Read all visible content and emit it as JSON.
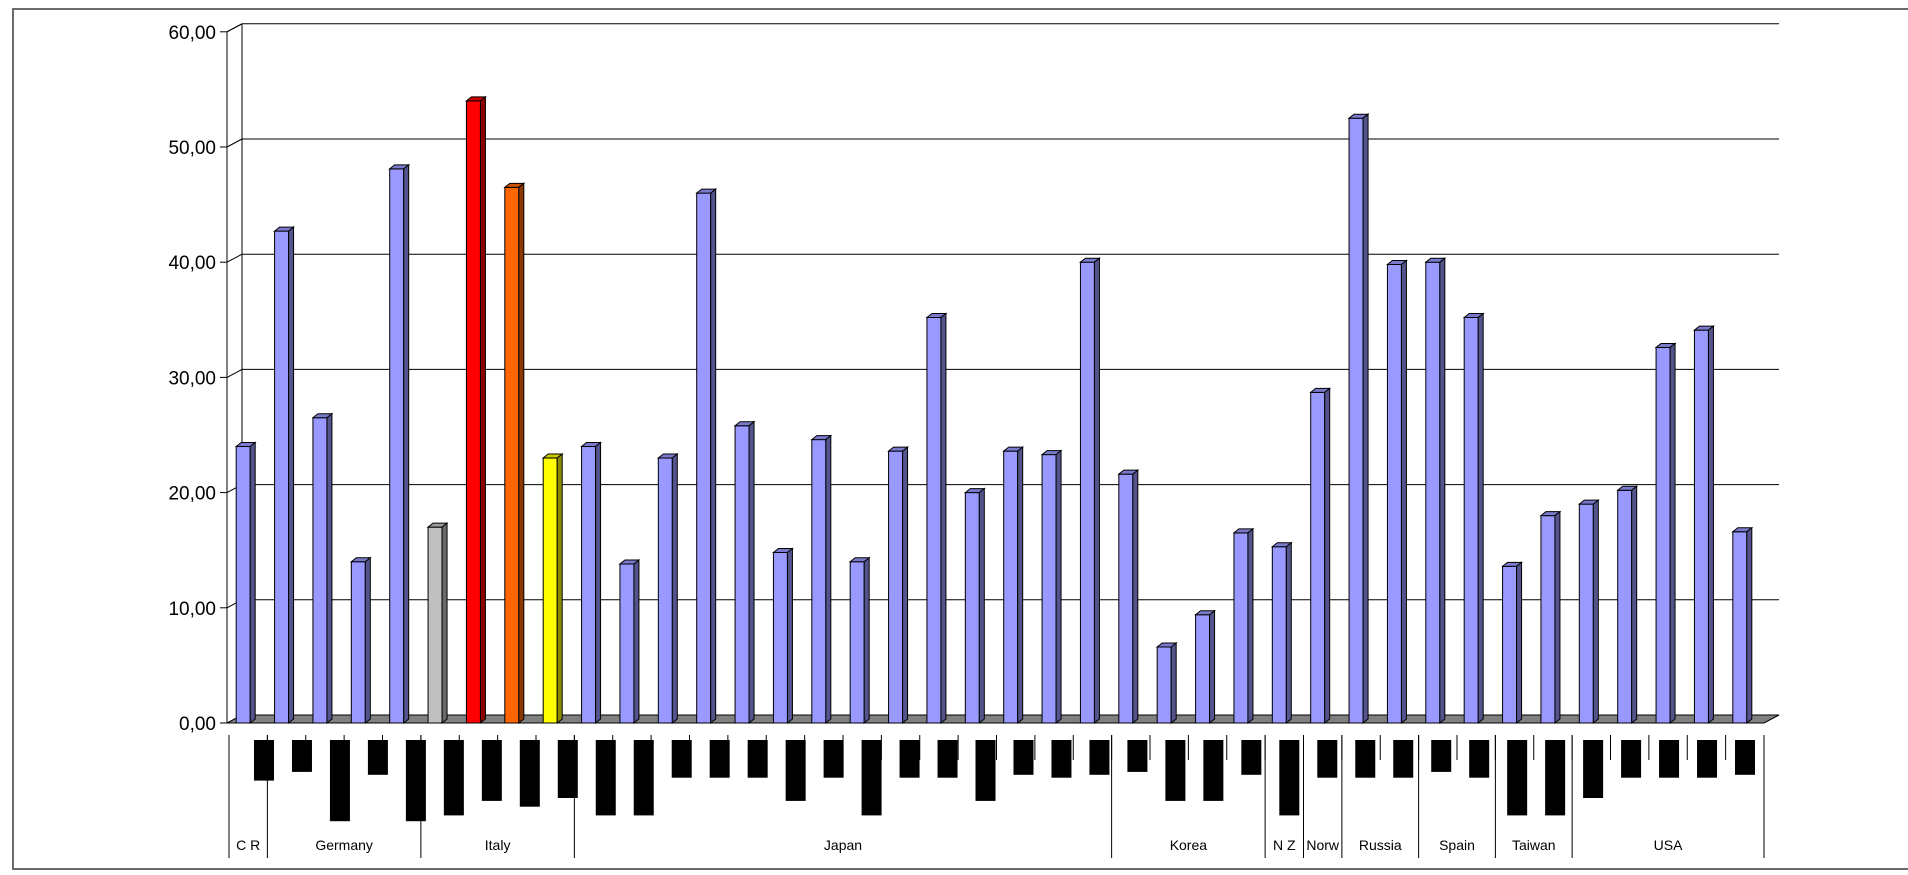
{
  "chart_data": {
    "type": "bar",
    "y_axis": {
      "ylim": [
        0,
        60
      ],
      "ticks": [
        0,
        10,
        20,
        30,
        40,
        50,
        60
      ],
      "tick_labels": [
        "0,00",
        "10,00",
        "20,00",
        "30,00",
        "40,00",
        "50,00",
        "60,00"
      ]
    },
    "grid": true,
    "values": [
      24.0,
      42.7,
      26.5,
      14.0,
      48.1,
      17.0,
      54.0,
      46.5,
      23.0,
      24.0,
      13.8,
      23.0,
      46.0,
      25.8,
      14.8,
      24.6,
      14.0,
      23.6,
      35.2,
      20.0,
      23.6,
      23.3,
      40.0,
      21.6,
      6.6,
      9.4,
      16.5,
      15.3,
      28.7,
      52.5,
      39.8,
      40.0,
      35.2,
      13.6,
      18.0,
      19.0,
      20.2,
      32.6,
      34.1,
      16.6
    ],
    "bar_colors": [
      "#9999ff",
      "#9999ff",
      "#9999ff",
      "#9999ff",
      "#9999ff",
      "#c0c0c0",
      "#ff0000",
      "#ff6600",
      "#ffff00",
      "#9999ff",
      "#9999ff",
      "#9999ff",
      "#9999ff",
      "#9999ff",
      "#9999ff",
      "#9999ff",
      "#9999ff",
      "#9999ff",
      "#9999ff",
      "#9999ff",
      "#9999ff",
      "#9999ff",
      "#9999ff",
      "#9999ff",
      "#9999ff",
      "#9999ff",
      "#9999ff",
      "#9999ff",
      "#9999ff",
      "#9999ff",
      "#9999ff",
      "#9999ff",
      "#9999ff",
      "#9999ff",
      "#9999ff",
      "#9999ff",
      "#9999ff",
      "#9999ff",
      "#9999ff",
      "#9999ff"
    ],
    "category_markers": [
      1.4,
      1.1,
      2.8,
      1.2,
      2.8,
      2.6,
      2.1,
      2.3,
      2.0,
      2.6,
      2.6,
      1.3,
      1.3,
      1.3,
      2.1,
      1.3,
      2.6,
      1.3,
      1.3,
      2.1,
      1.2,
      1.3,
      1.2,
      1.1,
      2.1,
      2.1,
      1.2,
      2.6,
      1.3,
      1.3,
      1.3,
      1.1,
      1.3,
      2.6,
      2.6,
      2.0,
      1.3,
      1.3,
      1.3,
      1.2
    ],
    "groups": [
      {
        "label": "C R",
        "count": 1
      },
      {
        "label": "Germany",
        "count": 4
      },
      {
        "label": "Italy",
        "count": 4
      },
      {
        "label": "Japan",
        "count": 14
      },
      {
        "label": "Korea",
        "count": 4
      },
      {
        "label": "N Z",
        "count": 1
      },
      {
        "label": "Norw",
        "count": 1
      },
      {
        "label": "Russia",
        "count": 2
      },
      {
        "label": "Spain",
        "count": 2
      },
      {
        "label": "Taiwan",
        "count": 2
      },
      {
        "label": "USA",
        "count": 5
      }
    ],
    "colors": {
      "default_bar": "#9999ff",
      "floor": "#808080",
      "marker": "#000000",
      "gridline": "#000000"
    }
  }
}
